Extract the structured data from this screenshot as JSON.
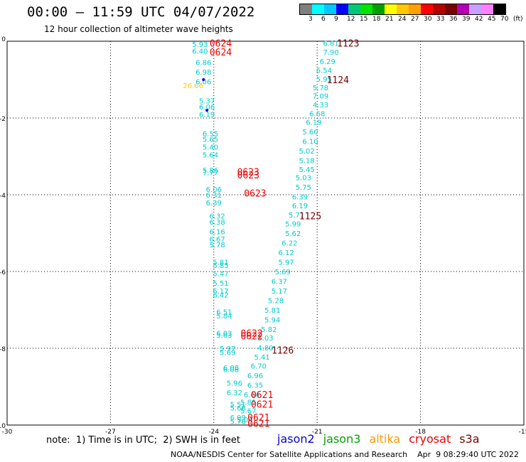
{
  "header": {
    "title": "00:00 – 11:59 UTC 04/07/2022",
    "subtitle": "12 hour collection of altimeter wave heights"
  },
  "colorbar": {
    "colors": [
      "#7f7f7f",
      "#00ffff",
      "#00c8ff",
      "#0000ff",
      "#00c878",
      "#00e600",
      "#00a000",
      "#ffff00",
      "#ffc800",
      "#ffa000",
      "#ff0000",
      "#b40000",
      "#780000",
      "#b400b4",
      "#c8a0ff",
      "#ff80ff",
      "#000000"
    ],
    "labels": [
      "3",
      "6",
      "9",
      "12",
      "15",
      "18",
      "21",
      "24",
      "27",
      "30",
      "33",
      "36",
      "39",
      "42",
      "45",
      "70",
      "(ft)"
    ]
  },
  "footer": {
    "note": "note:  1) Time is in UTC;  2) SWH is in feet",
    "satellites": [
      {
        "name": "jason2",
        "color": "#0000dd"
      },
      {
        "name": "jason3",
        "color": "#00a000"
      },
      {
        "name": "altika",
        "color": "#ff9900"
      },
      {
        "name": "cryosat",
        "color": "#ee0000"
      },
      {
        "name": "s3a",
        "color": "#780000"
      }
    ],
    "credit": "NOAA/NESDIS Center for Satellite Applications and Research    Apr  9 08:29:40 UTC 2022"
  },
  "chart_data": {
    "type": "scatter",
    "title": "00:00 – 11:59 UTC 04/07/2022",
    "subtitle": "12 hour collection of altimeter wave heights",
    "xlim": [
      -30,
      -15
    ],
    "ylim": [
      -10,
      0
    ],
    "x_ticks": [
      "-30",
      "-27",
      "-24",
      "-21",
      "-18",
      "-15"
    ],
    "y_ticks": [
      "0",
      "-2",
      "-4",
      "-6",
      "-8",
      "-10"
    ],
    "grid": true,
    "legend": "bottom",
    "series": [
      {
        "name": "pass-A",
        "color": "#00cccc",
        "points": [
          {
            "x": -24.4,
            "y": -0.07,
            "label": "5.93"
          },
          {
            "x": -24.4,
            "y": -0.25,
            "label": "6.40"
          },
          {
            "x": -24.3,
            "y": -0.55,
            "label": "6.86"
          },
          {
            "x": -24.3,
            "y": -0.8,
            "label": "6.98"
          },
          {
            "x": -24.3,
            "y": -1.05,
            "label": "6.06"
          },
          {
            "x": -24.2,
            "y": -1.55,
            "label": "5.37"
          },
          {
            "x": -24.2,
            "y": -1.7,
            "label": "6.06"
          },
          {
            "x": -24.2,
            "y": -1.9,
            "label": "6.19"
          },
          {
            "x": -24.1,
            "y": -2.4,
            "label": "6.55"
          },
          {
            "x": -24.1,
            "y": -2.55,
            "label": "5.65"
          },
          {
            "x": -24.1,
            "y": -2.75,
            "label": "5.40"
          },
          {
            "x": -24.1,
            "y": -2.95,
            "label": "5.64"
          },
          {
            "x": -24.1,
            "y": -3.35,
            "label": "5.86"
          },
          {
            "x": -24.1,
            "y": -3.42,
            "label": "7.77"
          },
          {
            "x": -24.0,
            "y": -3.85,
            "label": "6.06"
          },
          {
            "x": -24.0,
            "y": -4.0,
            "label": "6.31"
          },
          {
            "x": -24.0,
            "y": -4.2,
            "label": "6.39"
          },
          {
            "x": -23.9,
            "y": -4.55,
            "label": "6.32"
          },
          {
            "x": -23.9,
            "y": -4.7,
            "label": "6.38"
          },
          {
            "x": -23.9,
            "y": -4.95,
            "label": "6.16"
          },
          {
            "x": -23.9,
            "y": -5.15,
            "label": "6.67"
          },
          {
            "x": -23.9,
            "y": -5.3,
            "label": "5.78"
          },
          {
            "x": -23.8,
            "y": -5.75,
            "label": "5.81"
          },
          {
            "x": -23.8,
            "y": -5.83,
            "label": "5.85"
          },
          {
            "x": -23.8,
            "y": -6.05,
            "label": "5.47"
          },
          {
            "x": -23.8,
            "y": -6.3,
            "label": "5.51"
          },
          {
            "x": -23.8,
            "y": -6.5,
            "label": "6.17"
          },
          {
            "x": -23.8,
            "y": -6.6,
            "label": "6.42"
          },
          {
            "x": -23.7,
            "y": -7.05,
            "label": "6.51"
          },
          {
            "x": -23.7,
            "y": -7.15,
            "label": "5.84"
          },
          {
            "x": -23.7,
            "y": -7.6,
            "label": "6.03"
          },
          {
            "x": -23.7,
            "y": -7.65,
            "label": "5.63"
          },
          {
            "x": -23.6,
            "y": -8.0,
            "label": "5.97"
          },
          {
            "x": -23.6,
            "y": -8.1,
            "label": "5.69"
          },
          {
            "x": -23.5,
            "y": -8.5,
            "label": "6.08"
          },
          {
            "x": -23.5,
            "y": -8.55,
            "label": "6.08"
          },
          {
            "x": -23.4,
            "y": -8.9,
            "label": "5.96"
          },
          {
            "x": -23.4,
            "y": -9.15,
            "label": "6.32"
          },
          {
            "x": -23.3,
            "y": -9.45,
            "label": "5.51"
          },
          {
            "x": -23.3,
            "y": -9.55,
            "label": "5.66"
          },
          {
            "x": -23.3,
            "y": -9.8,
            "label": "6.09"
          },
          {
            "x": -23.3,
            "y": -9.9,
            "label": "5.76"
          }
        ]
      },
      {
        "name": "pass-B",
        "color": "#00cccc",
        "points": [
          {
            "x": -20.6,
            "y": -0.05,
            "label": "6.81"
          },
          {
            "x": -20.6,
            "y": -0.28,
            "label": "7.90"
          },
          {
            "x": -20.7,
            "y": -0.52,
            "label": "6.29"
          },
          {
            "x": -20.8,
            "y": -0.75,
            "label": "6.54"
          },
          {
            "x": -20.8,
            "y": -0.98,
            "label": "5.95"
          },
          {
            "x": -20.9,
            "y": -1.2,
            "label": "5.78"
          },
          {
            "x": -20.9,
            "y": -1.42,
            "label": "7.09"
          },
          {
            "x": -20.9,
            "y": -1.65,
            "label": "4.33"
          },
          {
            "x": -21.0,
            "y": -1.88,
            "label": "6.68"
          },
          {
            "x": -21.1,
            "y": -2.1,
            "label": "6.19"
          },
          {
            "x": -21.2,
            "y": -2.35,
            "label": "5.60"
          },
          {
            "x": -21.2,
            "y": -2.6,
            "label": "6.10"
          },
          {
            "x": -21.3,
            "y": -2.85,
            "label": "5.02"
          },
          {
            "x": -21.3,
            "y": -3.1,
            "label": "5.18"
          },
          {
            "x": -21.3,
            "y": -3.33,
            "label": "5.45"
          },
          {
            "x": -21.4,
            "y": -3.55,
            "label": "5.03"
          },
          {
            "x": -21.4,
            "y": -3.8,
            "label": "5.75"
          },
          {
            "x": -21.5,
            "y": -4.05,
            "label": "6.39"
          },
          {
            "x": -21.5,
            "y": -4.28,
            "label": "6.19"
          },
          {
            "x": -21.6,
            "y": -4.52,
            "label": "5.71"
          },
          {
            "x": -21.7,
            "y": -4.75,
            "label": "5.99"
          },
          {
            "x": -21.7,
            "y": -5.0,
            "label": "5.62"
          },
          {
            "x": -21.8,
            "y": -5.25,
            "label": "6.22"
          },
          {
            "x": -21.9,
            "y": -5.5,
            "label": "6.12"
          },
          {
            "x": -21.9,
            "y": -5.75,
            "label": "5.97"
          },
          {
            "x": -22.0,
            "y": -6.0,
            "label": "5.69"
          },
          {
            "x": -22.1,
            "y": -6.25,
            "label": "6.37"
          },
          {
            "x": -22.1,
            "y": -6.5,
            "label": "5.17"
          },
          {
            "x": -22.2,
            "y": -6.75,
            "label": "5.28"
          },
          {
            "x": -22.3,
            "y": -7.0,
            "label": "5.81"
          },
          {
            "x": -22.3,
            "y": -7.25,
            "label": "5.94"
          },
          {
            "x": -22.4,
            "y": -7.5,
            "label": "5.82"
          },
          {
            "x": -22.5,
            "y": -7.72,
            "label": "5.03"
          },
          {
            "x": -22.5,
            "y": -7.98,
            "label": "4.80"
          },
          {
            "x": -22.6,
            "y": -8.22,
            "label": "5.41"
          },
          {
            "x": -22.7,
            "y": -8.45,
            "label": "6.70"
          },
          {
            "x": -22.8,
            "y": -8.7,
            "label": "6.96"
          },
          {
            "x": -22.8,
            "y": -8.95,
            "label": "6.35"
          },
          {
            "x": -22.9,
            "y": -9.2,
            "label": "6.64"
          },
          {
            "x": -23.0,
            "y": -9.4,
            "label": "5.85"
          },
          {
            "x": -23.0,
            "y": -9.62,
            "label": "5.67"
          },
          {
            "x": -23.1,
            "y": -9.85,
            "label": "5.04"
          }
        ]
      },
      {
        "name": "pass-C",
        "color": "#ffc800",
        "points": [
          {
            "x": -24.6,
            "y": -1.15,
            "label": "26.66"
          }
        ]
      },
      {
        "name": "pass-D",
        "color": "#0000dd",
        "points": [
          {
            "x": -24.3,
            "y": -1.0,
            "label": ""
          },
          {
            "x": -24.2,
            "y": -1.8,
            "label": ""
          }
        ]
      }
    ],
    "markers": [
      {
        "x": -23.8,
        "y": -0.05,
        "label": "0624",
        "color": "#ee0000"
      },
      {
        "x": -23.8,
        "y": -0.28,
        "label": "0624",
        "color": "#ee0000"
      },
      {
        "x": -23.0,
        "y": -3.4,
        "label": "0623",
        "color": "#ee0000"
      },
      {
        "x": -23.0,
        "y": -3.48,
        "label": "0623",
        "color": "#ee0000"
      },
      {
        "x": -22.8,
        "y": -3.95,
        "label": "0623",
        "color": "#ee0000"
      },
      {
        "x": -22.9,
        "y": -7.6,
        "label": "0622",
        "color": "#ee0000"
      },
      {
        "x": -22.9,
        "y": -7.68,
        "label": "0622",
        "color": "#ee0000"
      },
      {
        "x": -22.6,
        "y": -9.2,
        "label": "0621",
        "color": "#ee0000"
      },
      {
        "x": -22.6,
        "y": -9.45,
        "label": "0621",
        "color": "#ee0000"
      },
      {
        "x": -22.7,
        "y": -9.8,
        "label": "0621",
        "color": "#ee0000"
      },
      {
        "x": -22.7,
        "y": -9.95,
        "label": "0621",
        "color": "#ee0000"
      },
      {
        "x": -20.1,
        "y": -0.05,
        "label": "1123",
        "color": "#780000"
      },
      {
        "x": -20.4,
        "y": -1.0,
        "label": "1124",
        "color": "#780000"
      },
      {
        "x": -21.2,
        "y": -4.55,
        "label": "1125",
        "color": "#780000"
      },
      {
        "x": -22.0,
        "y": -8.05,
        "label": "1126",
        "color": "#780000"
      }
    ]
  }
}
